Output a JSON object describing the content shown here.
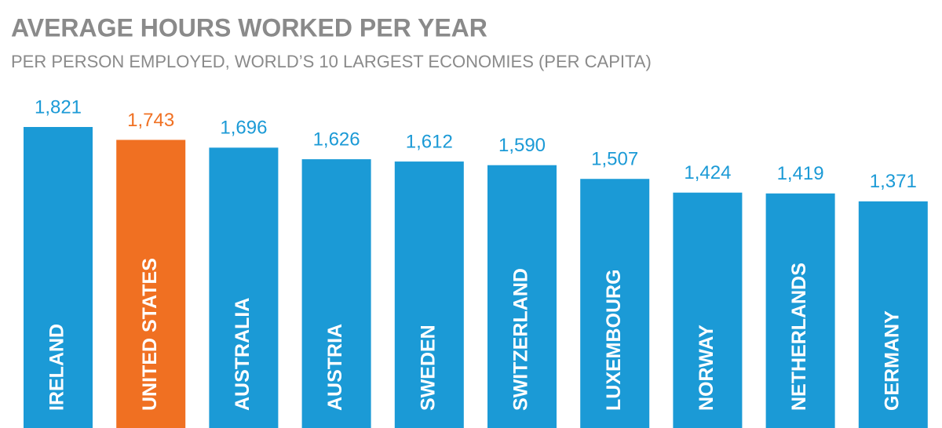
{
  "chart_data": {
    "type": "bar",
    "title": "AVERAGE HOURS WORKED PER YEAR",
    "subtitle": "PER PERSON EMPLOYED, WORLD’S 10 LARGEST ECONOMIES (PER CAPITA)",
    "categories": [
      "IRELAND",
      "UNITED STATES",
      "AUSTRALIA",
      "AUSTRIA",
      "SWEDEN",
      "SWITZERLAND",
      "LUXEMBOURG",
      "NORWAY",
      "NETHERLANDS",
      "GERMANY"
    ],
    "values": [
      1821,
      1743,
      1696,
      1626,
      1612,
      1590,
      1507,
      1424,
      1419,
      1371
    ],
    "value_labels": [
      "1,821",
      "1,743",
      "1,696",
      "1,626",
      "1,612",
      "1,590",
      "1,507",
      "1,424",
      "1,419",
      "1,371"
    ],
    "colors": [
      "#1b9ad6",
      "#f07022",
      "#1b9ad6",
      "#1b9ad6",
      "#1b9ad6",
      "#1b9ad6",
      "#1b9ad6",
      "#1b9ad6",
      "#1b9ad6",
      "#1b9ad6"
    ]
  }
}
